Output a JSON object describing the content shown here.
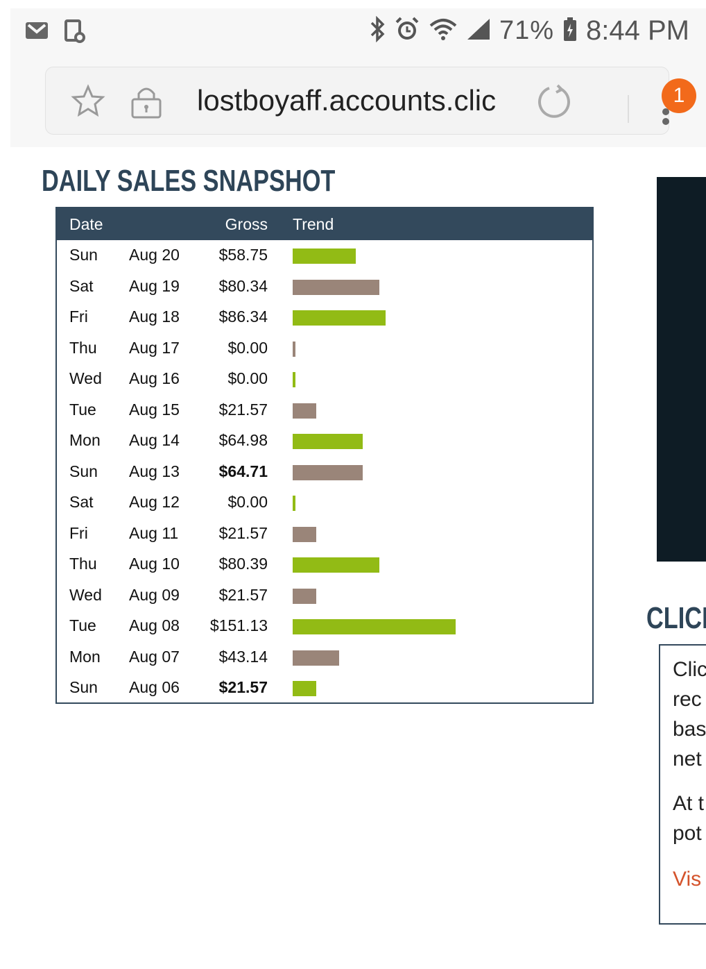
{
  "status_bar": {
    "battery": "71%",
    "time": "8:44 PM"
  },
  "browser": {
    "url": "lostboyaff.accounts.clic",
    "notification_count": "1"
  },
  "page": {
    "title": "DAILY SALES SNAPSHOT",
    "table": {
      "headers": [
        "Date",
        "Gross",
        "Trend"
      ],
      "rows": [
        {
          "day": "Sun",
          "date": "Aug 20",
          "gross": "$58.75",
          "value": 58.75,
          "bold": false,
          "color": "#92bb15"
        },
        {
          "day": "Sat",
          "date": "Aug 19",
          "gross": "$80.34",
          "value": 80.34,
          "bold": false,
          "color": "#9a8579"
        },
        {
          "day": "Fri",
          "date": "Aug 18",
          "gross": "$86.34",
          "value": 86.34,
          "bold": false,
          "color": "#92bb15"
        },
        {
          "day": "Thu",
          "date": "Aug 17",
          "gross": "$0.00",
          "value": 0.0,
          "bold": false,
          "color": "#9a8579"
        },
        {
          "day": "Wed",
          "date": "Aug 16",
          "gross": "$0.00",
          "value": 0.0,
          "bold": false,
          "color": "#92bb15"
        },
        {
          "day": "Tue",
          "date": "Aug 15",
          "gross": "$21.57",
          "value": 21.57,
          "bold": false,
          "color": "#9a8579"
        },
        {
          "day": "Mon",
          "date": "Aug 14",
          "gross": "$64.98",
          "value": 64.98,
          "bold": false,
          "color": "#92bb15"
        },
        {
          "day": "Sun",
          "date": "Aug 13",
          "gross": "$64.71",
          "value": 64.71,
          "bold": true,
          "color": "#9a8579"
        },
        {
          "day": "Sat",
          "date": "Aug 12",
          "gross": "$0.00",
          "value": 0.0,
          "bold": false,
          "color": "#92bb15"
        },
        {
          "day": "Fri",
          "date": "Aug 11",
          "gross": "$21.57",
          "value": 21.57,
          "bold": false,
          "color": "#9a8579"
        },
        {
          "day": "Thu",
          "date": "Aug 10",
          "gross": "$80.39",
          "value": 80.39,
          "bold": false,
          "color": "#92bb15"
        },
        {
          "day": "Wed",
          "date": "Aug 09",
          "gross": "$21.57",
          "value": 21.57,
          "bold": false,
          "color": "#9a8579"
        },
        {
          "day": "Tue",
          "date": "Aug 08",
          "gross": "$151.13",
          "value": 151.13,
          "bold": false,
          "color": "#92bb15"
        },
        {
          "day": "Mon",
          "date": "Aug 07",
          "gross": "$43.14",
          "value": 43.14,
          "bold": false,
          "color": "#9a8579"
        },
        {
          "day": "Sun",
          "date": "Aug 06",
          "gross": "$21.57",
          "value": 21.57,
          "bold": true,
          "color": "#92bb15"
        }
      ]
    },
    "side": {
      "title": "CLICK",
      "lines": [
        "Clic",
        "rec",
        "bas",
        "net",
        "At t",
        "pot"
      ],
      "link": "Vis"
    }
  },
  "colors": {
    "header_bg": "#33495c",
    "title": "#2e4558",
    "bar_green": "#92bb15",
    "bar_brown": "#9a8579",
    "badge": "#f26a1b",
    "link": "#d4532b"
  }
}
